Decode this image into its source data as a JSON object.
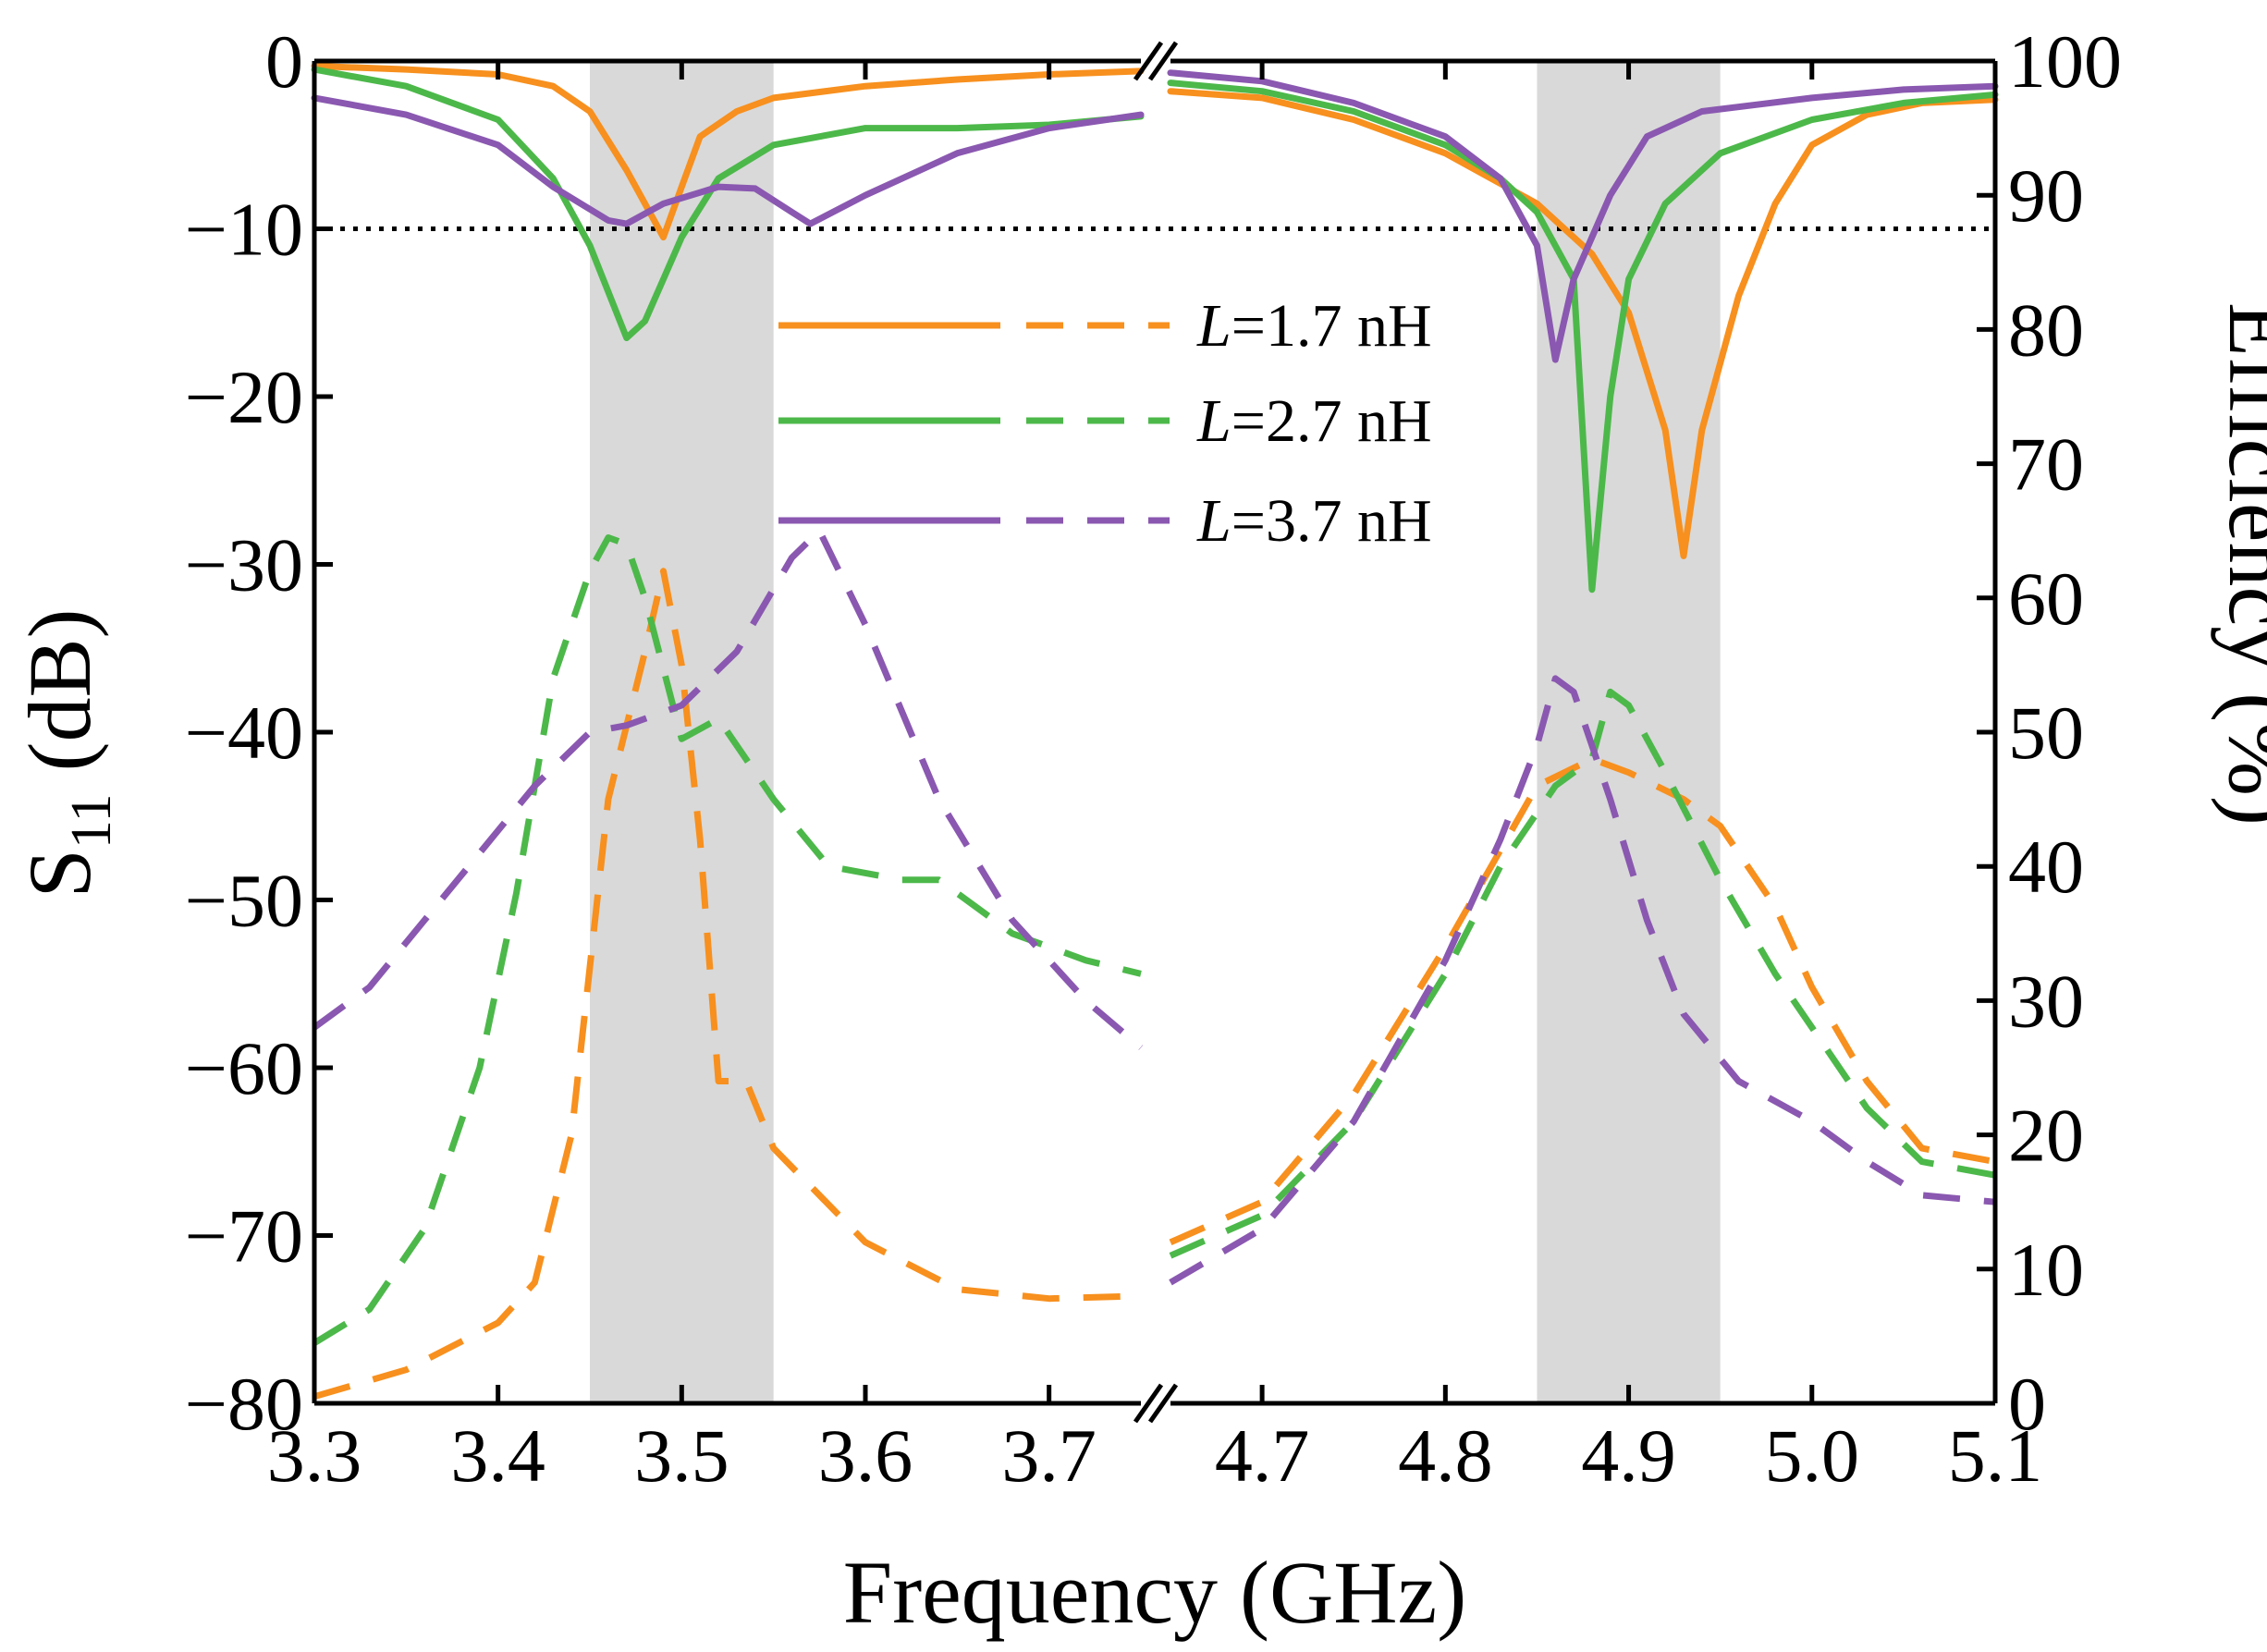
{
  "chart_data": {
    "type": "line",
    "xlabel": "Frequency (GHz)",
    "ylabel_left": "S",
    "ylabel_left_sub": "11",
    "ylabel_left_unit": " (dB)",
    "ylabel_right": "Efficiency (%)",
    "x_break": {
      "from": 3.75,
      "to": 4.65,
      "segments": [
        [
          3.3,
          3.75
        ],
        [
          4.65,
          5.1
        ]
      ]
    },
    "x_ticks": [
      {
        "v": 3.3,
        "label": "3.3"
      },
      {
        "v": 3.4,
        "label": "3.4"
      },
      {
        "v": 3.5,
        "label": "3.5"
      },
      {
        "v": 3.6,
        "label": "3.6"
      },
      {
        "v": 3.7,
        "label": "3.7"
      },
      {
        "v": 4.7,
        "label": "4.7"
      },
      {
        "v": 4.8,
        "label": "4.8"
      },
      {
        "v": 4.9,
        "label": "4.9"
      },
      {
        "v": 5.0,
        "label": "5.0"
      },
      {
        "v": 5.1,
        "label": "5.1"
      }
    ],
    "yleft_range": [
      -80,
      0
    ],
    "yleft_ticks": [
      {
        "v": 0,
        "label": "0"
      },
      {
        "v": -10,
        "label": "−10"
      },
      {
        "v": -20,
        "label": "−20"
      },
      {
        "v": -30,
        "label": "−30"
      },
      {
        "v": -40,
        "label": "−40"
      },
      {
        "v": -50,
        "label": "−50"
      },
      {
        "v": -60,
        "label": "−60"
      },
      {
        "v": -70,
        "label": "−70"
      },
      {
        "v": -80,
        "label": "−80"
      }
    ],
    "yright_range": [
      0,
      100
    ],
    "yright_ticks": [
      {
        "v": 0,
        "label": "0"
      },
      {
        "v": 10,
        "label": "10"
      },
      {
        "v": 20,
        "label": "20"
      },
      {
        "v": 30,
        "label": "30"
      },
      {
        "v": 40,
        "label": "40"
      },
      {
        "v": 50,
        "label": "50"
      },
      {
        "v": 60,
        "label": "60"
      },
      {
        "v": 70,
        "label": "70"
      },
      {
        "v": 80,
        "label": "80"
      },
      {
        "v": 90,
        "label": "90"
      },
      {
        "v": 100,
        "label": "100"
      }
    ],
    "shaded_bands": [
      [
        3.45,
        3.55
      ],
      [
        4.85,
        4.95
      ]
    ],
    "reference_line": {
      "y": -10,
      "style": "dotted"
    },
    "legend": {
      "position": "center",
      "prefix": "L",
      "entries": [
        "=1.7 nH",
        "=2.7 nH",
        "=3.7 nH"
      ]
    },
    "series": [
      {
        "name": "L=1.7 nH",
        "color": "#F7901E",
        "s11": [
          [
            3.3,
            -0.3
          ],
          [
            3.35,
            -0.5
          ],
          [
            3.4,
            -0.8
          ],
          [
            3.43,
            -1.5
          ],
          [
            3.45,
            -3
          ],
          [
            3.47,
            -6.5
          ],
          [
            3.49,
            -10.5
          ],
          [
            3.5,
            -7.5
          ],
          [
            3.51,
            -4.5
          ],
          [
            3.53,
            -3
          ],
          [
            3.55,
            -2.2
          ],
          [
            3.6,
            -1.5
          ],
          [
            3.65,
            -1.1
          ],
          [
            3.7,
            -0.8
          ],
          [
            3.75,
            -0.6
          ],
          [
            4.65,
            -1.8
          ],
          [
            4.7,
            -2.2
          ],
          [
            4.75,
            -3.5
          ],
          [
            4.8,
            -5.5
          ],
          [
            4.85,
            -8.5
          ],
          [
            4.88,
            -11.5
          ],
          [
            4.9,
            -15
          ],
          [
            4.92,
            -22
          ],
          [
            4.93,
            -29.5
          ],
          [
            4.94,
            -22
          ],
          [
            4.96,
            -14
          ],
          [
            4.98,
            -8.5
          ],
          [
            5.0,
            -5
          ],
          [
            5.03,
            -3.2
          ],
          [
            5.06,
            -2.5
          ],
          [
            5.1,
            -2.3
          ]
        ],
        "efficiency": [
          [
            3.3,
            0.5
          ],
          [
            3.35,
            2.5
          ],
          [
            3.4,
            6
          ],
          [
            3.42,
            9
          ],
          [
            3.44,
            20
          ],
          [
            3.46,
            45
          ],
          [
            3.48,
            56
          ],
          [
            3.49,
            62
          ],
          [
            3.5,
            55
          ],
          [
            3.51,
            42
          ],
          [
            3.52,
            24
          ],
          [
            3.535,
            24
          ],
          [
            3.55,
            19
          ],
          [
            3.6,
            12
          ],
          [
            3.65,
            8.5
          ],
          [
            3.7,
            7.8
          ],
          [
            3.75,
            8
          ],
          [
            4.65,
            12
          ],
          [
            4.7,
            15
          ],
          [
            4.75,
            23
          ],
          [
            4.8,
            34
          ],
          [
            4.85,
            46
          ],
          [
            4.88,
            48
          ],
          [
            4.9,
            47
          ],
          [
            4.93,
            45
          ],
          [
            4.95,
            43
          ],
          [
            4.98,
            37
          ],
          [
            5.0,
            31
          ],
          [
            5.03,
            24
          ],
          [
            5.06,
            19
          ],
          [
            5.1,
            18
          ]
        ]
      },
      {
        "name": "L=2.7 nH",
        "color": "#4CB84A",
        "s11": [
          [
            3.3,
            -0.5
          ],
          [
            3.35,
            -1.5
          ],
          [
            3.4,
            -3.5
          ],
          [
            3.43,
            -7
          ],
          [
            3.45,
            -11
          ],
          [
            3.47,
            -16.5
          ],
          [
            3.48,
            -15.5
          ],
          [
            3.49,
            -13
          ],
          [
            3.5,
            -10.5
          ],
          [
            3.52,
            -7
          ],
          [
            3.55,
            -5
          ],
          [
            3.6,
            -4
          ],
          [
            3.65,
            -4
          ],
          [
            3.7,
            -3.8
          ],
          [
            3.75,
            -3.3
          ],
          [
            4.65,
            -1.3
          ],
          [
            4.7,
            -1.8
          ],
          [
            4.75,
            -3
          ],
          [
            4.8,
            -5
          ],
          [
            4.83,
            -7
          ],
          [
            4.85,
            -9
          ],
          [
            4.87,
            -13
          ],
          [
            4.88,
            -31.5
          ],
          [
            4.89,
            -20
          ],
          [
            4.9,
            -13
          ],
          [
            4.92,
            -8.5
          ],
          [
            4.95,
            -5.5
          ],
          [
            5.0,
            -3.5
          ],
          [
            5.05,
            -2.5
          ],
          [
            5.1,
            -2
          ]
        ],
        "efficiency": [
          [
            3.3,
            4.5
          ],
          [
            3.33,
            7
          ],
          [
            3.36,
            13
          ],
          [
            3.39,
            25
          ],
          [
            3.41,
            38
          ],
          [
            3.43,
            54
          ],
          [
            3.45,
            62
          ],
          [
            3.46,
            64.5
          ],
          [
            3.47,
            64
          ],
          [
            3.48,
            60
          ],
          [
            3.5,
            49.5
          ],
          [
            3.52,
            51
          ],
          [
            3.55,
            45
          ],
          [
            3.58,
            40
          ],
          [
            3.62,
            39
          ],
          [
            3.64,
            39
          ],
          [
            3.68,
            35
          ],
          [
            3.72,
            33
          ],
          [
            3.75,
            32
          ],
          [
            4.65,
            11
          ],
          [
            4.7,
            14
          ],
          [
            4.75,
            21
          ],
          [
            4.8,
            32
          ],
          [
            4.83,
            40
          ],
          [
            4.86,
            46
          ],
          [
            4.88,
            48
          ],
          [
            4.89,
            53
          ],
          [
            4.9,
            52
          ],
          [
            4.92,
            47
          ],
          [
            4.95,
            39
          ],
          [
            4.98,
            32
          ],
          [
            5.0,
            28
          ],
          [
            5.03,
            22
          ],
          [
            5.06,
            18
          ],
          [
            5.1,
            17
          ]
        ]
      },
      {
        "name": "L=3.7 nH",
        "color": "#8A58B0",
        "s11": [
          [
            3.3,
            -2.2
          ],
          [
            3.35,
            -3.2
          ],
          [
            3.4,
            -5
          ],
          [
            3.43,
            -7.5
          ],
          [
            3.46,
            -9.5
          ],
          [
            3.47,
            -9.7
          ],
          [
            3.49,
            -8.5
          ],
          [
            3.52,
            -7.5
          ],
          [
            3.54,
            -7.6
          ],
          [
            3.56,
            -9
          ],
          [
            3.57,
            -9.7
          ],
          [
            3.6,
            -8
          ],
          [
            3.65,
            -5.5
          ],
          [
            3.7,
            -4
          ],
          [
            3.75,
            -3.2
          ],
          [
            4.65,
            -0.7
          ],
          [
            4.7,
            -1.2
          ],
          [
            4.75,
            -2.5
          ],
          [
            4.8,
            -4.5
          ],
          [
            4.83,
            -7
          ],
          [
            4.85,
            -11
          ],
          [
            4.86,
            -17.8
          ],
          [
            4.87,
            -13
          ],
          [
            4.89,
            -8
          ],
          [
            4.91,
            -4.5
          ],
          [
            4.94,
            -3
          ],
          [
            5.0,
            -2.2
          ],
          [
            5.05,
            -1.7
          ],
          [
            5.1,
            -1.5
          ]
        ],
        "efficiency": [
          [
            3.3,
            28
          ],
          [
            3.33,
            31
          ],
          [
            3.36,
            36
          ],
          [
            3.39,
            41
          ],
          [
            3.42,
            46
          ],
          [
            3.45,
            50
          ],
          [
            3.47,
            50.5
          ],
          [
            3.5,
            52
          ],
          [
            3.53,
            56
          ],
          [
            3.56,
            63
          ],
          [
            3.575,
            65
          ],
          [
            3.6,
            58
          ],
          [
            3.64,
            45
          ],
          [
            3.68,
            36
          ],
          [
            3.72,
            30
          ],
          [
            3.75,
            26.5
          ],
          [
            4.65,
            9
          ],
          [
            4.7,
            13
          ],
          [
            4.75,
            21
          ],
          [
            4.8,
            33
          ],
          [
            4.83,
            42
          ],
          [
            4.85,
            49
          ],
          [
            4.86,
            54
          ],
          [
            4.87,
            53
          ],
          [
            4.89,
            45
          ],
          [
            4.91,
            36
          ],
          [
            4.93,
            29
          ],
          [
            4.96,
            24
          ],
          [
            5.0,
            21
          ],
          [
            5.03,
            18
          ],
          [
            5.06,
            15.5
          ],
          [
            5.1,
            15
          ]
        ]
      }
    ]
  }
}
